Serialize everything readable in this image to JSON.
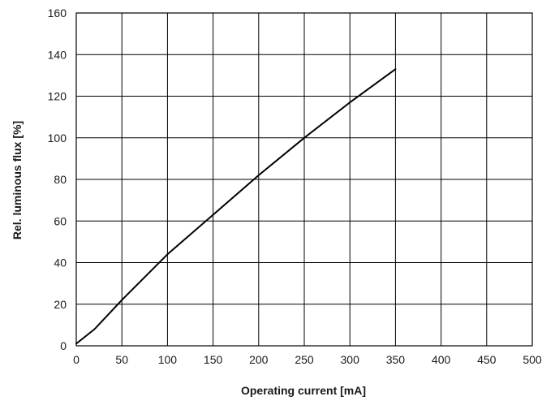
{
  "chart_data": {
    "type": "line",
    "xlabel": "Operating current [mA]",
    "ylabel": "Rel. luminous flux [%]",
    "xlim": [
      0,
      500
    ],
    "ylim": [
      0,
      160
    ],
    "xticks": [
      "0",
      "50",
      "100",
      "150",
      "200",
      "250",
      "300",
      "350",
      "400",
      "450",
      "500"
    ],
    "yticks": [
      "0",
      "20",
      "40",
      "60",
      "80",
      "100",
      "120",
      "140",
      "160"
    ],
    "grid": true,
    "series": [
      {
        "x": [
          0,
          20,
          50,
          100,
          150,
          200,
          250,
          300,
          350
        ],
        "y": [
          1,
          8,
          22,
          44,
          63,
          82,
          100,
          117,
          133
        ]
      }
    ],
    "colors": {
      "line": "#000000",
      "grid": "#000000",
      "text": "#1a1a1a"
    }
  }
}
